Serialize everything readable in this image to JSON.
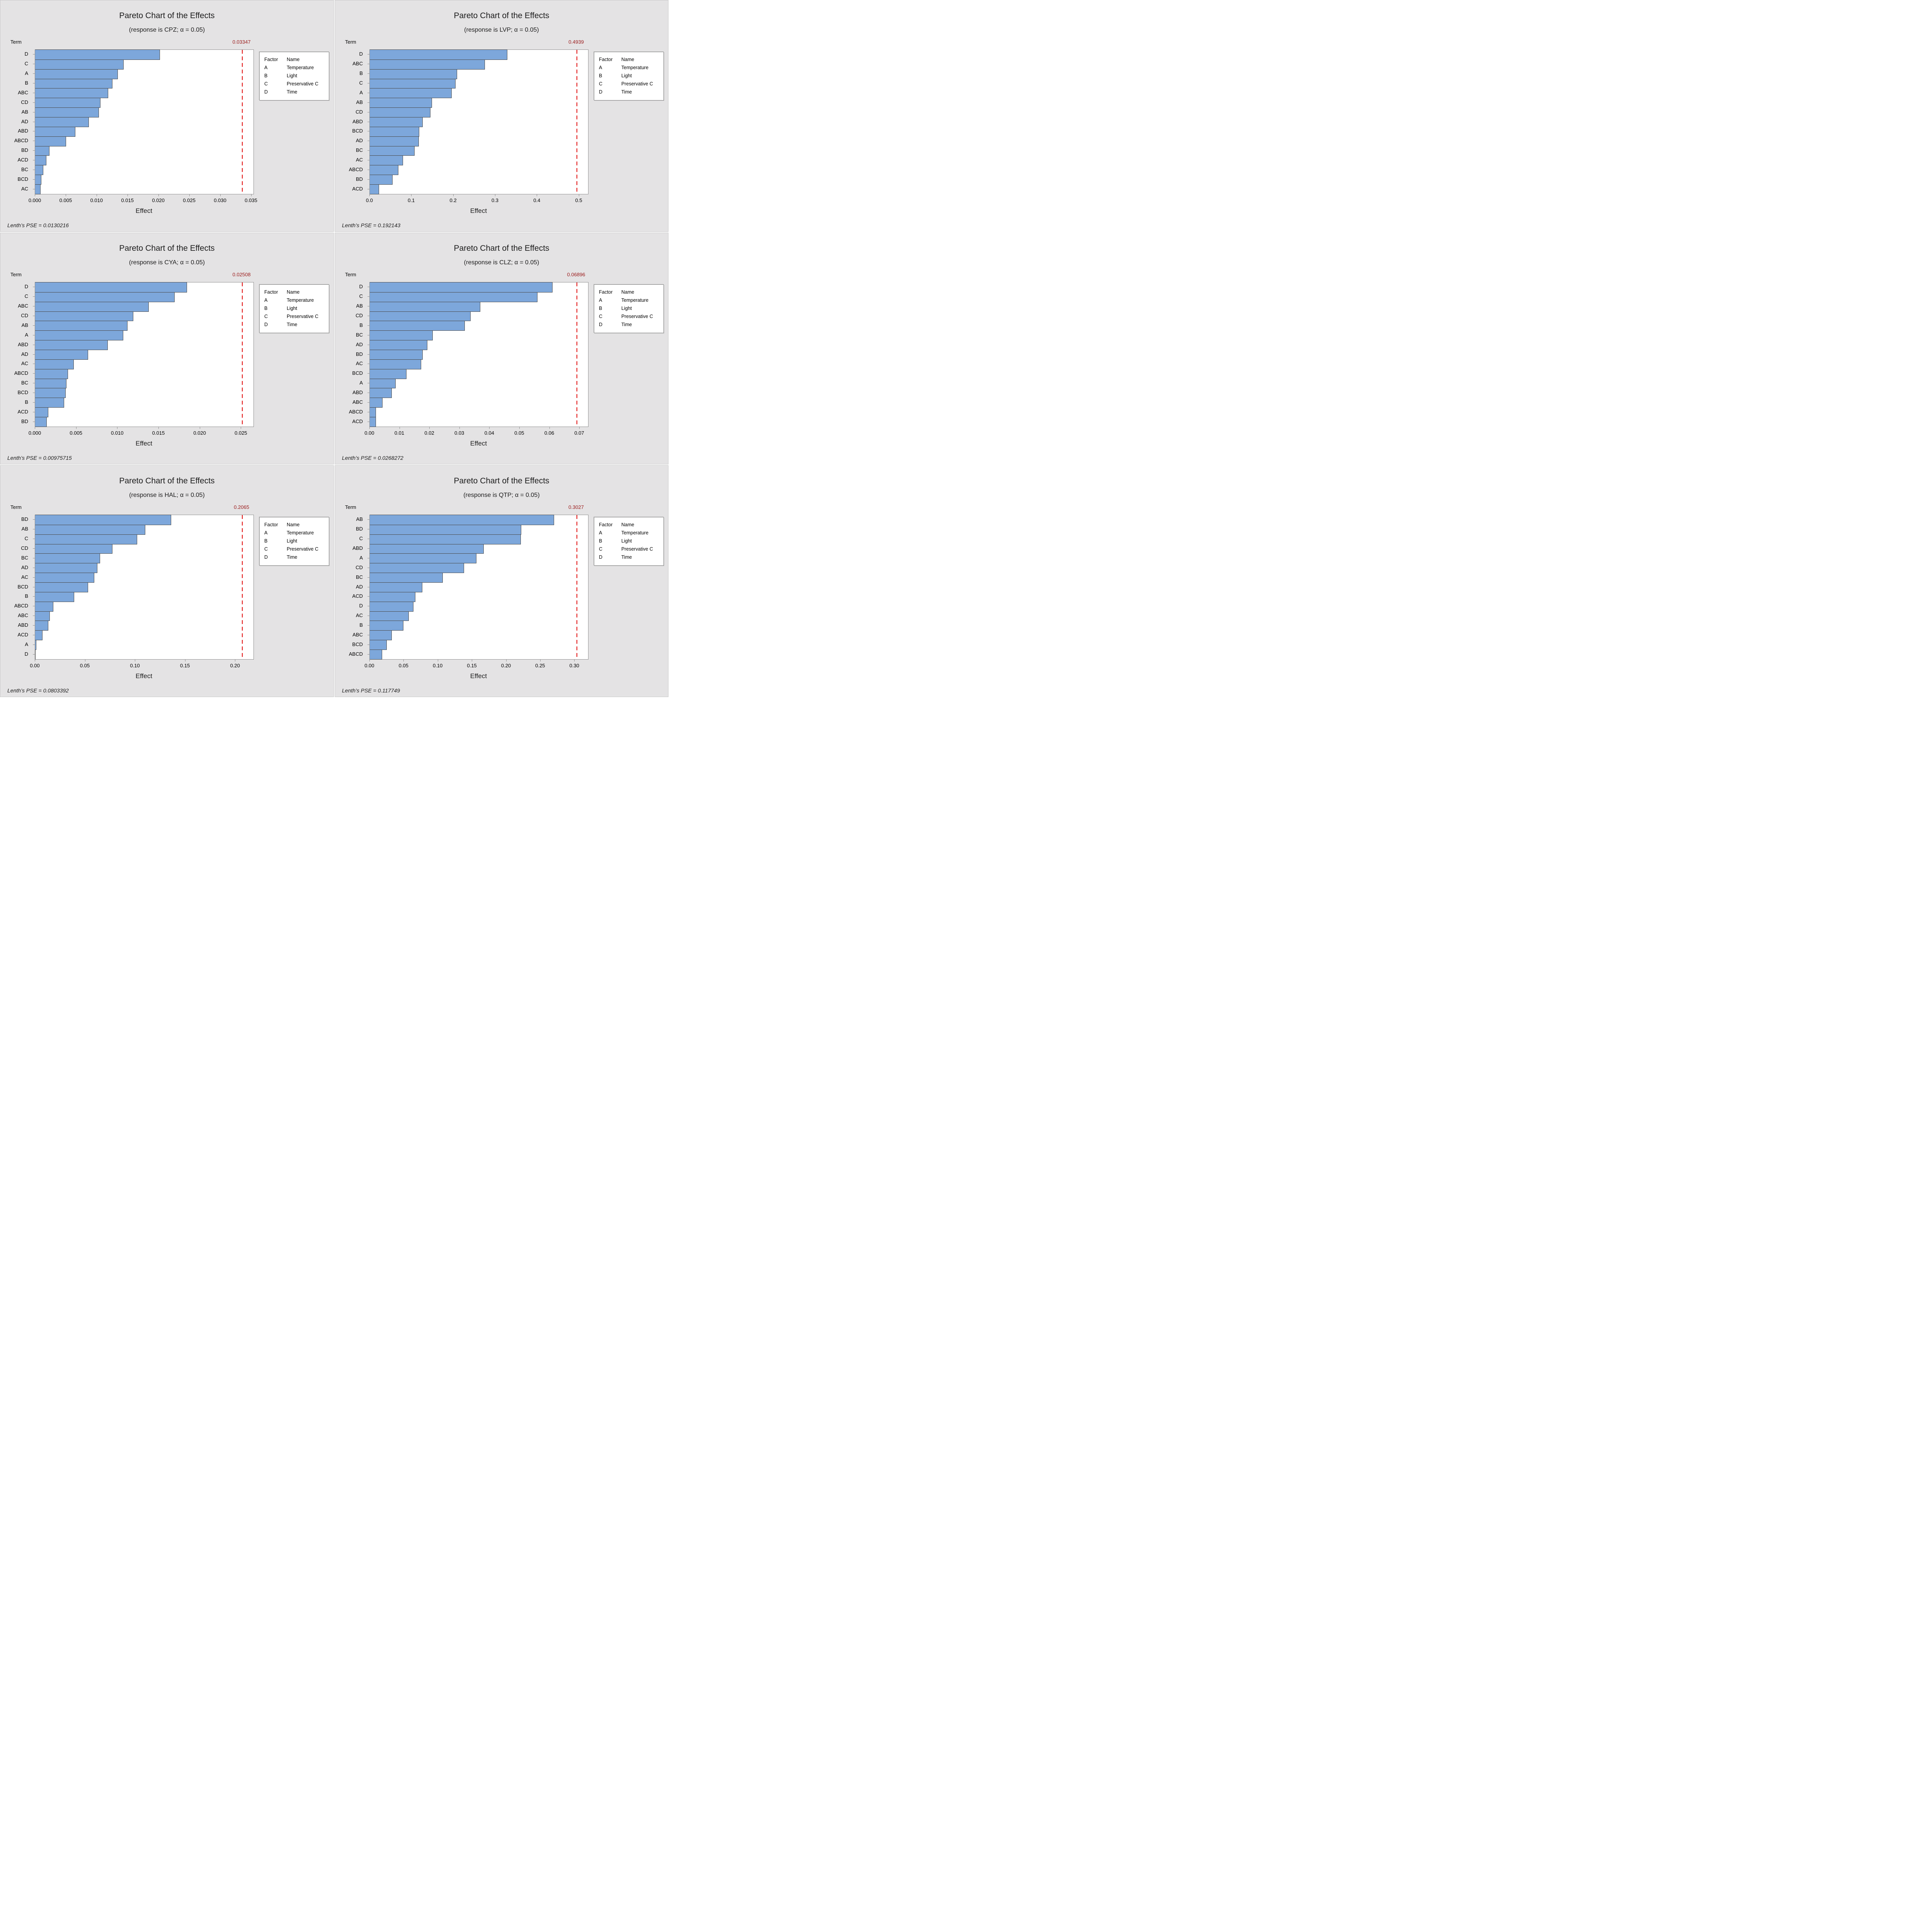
{
  "page": {
    "legend": {
      "header_factor": "Factor",
      "header_name": "Name",
      "rows": [
        {
          "factor": "A",
          "name": "Temperature"
        },
        {
          "factor": "B",
          "name": "Light"
        },
        {
          "factor": "C",
          "name": "Preservative C"
        },
        {
          "factor": "D",
          "name": "Time"
        }
      ]
    },
    "colors": {
      "bar_fill": "#7da7db",
      "bar_border": "#4a4a4a",
      "ref_line_red": "#e00000",
      "ref_label_red": "#9b1b1b",
      "panel_bg": "#e4e3e4",
      "plot_bg": "#ffffff",
      "frame_gray": "#8f8f8f"
    }
  },
  "chart_data": [
    {
      "type": "bar",
      "orientation": "horizontal",
      "title": "Pareto Chart of the Effects",
      "subtitle": "(response is CPZ; α = 0.05)",
      "response": "CPZ",
      "alpha": "0.05",
      "ylabel": "Term",
      "xlabel": "Effect",
      "ref_value": 0.03347,
      "ref_label": "0.03347",
      "lenth_pse_label": "Lenth’s PSE = 0.0130216",
      "axis_max": 0.03534,
      "tick_values": [
        0,
        0.005,
        0.01,
        0.015,
        0.02,
        0.025,
        0.03,
        0.035
      ],
      "tick_labels": [
        "0.000",
        "0.005",
        "0.010",
        "0.015",
        "0.020",
        "0.025",
        "0.030",
        "0.035"
      ],
      "terms": [
        "D",
        "C",
        "A",
        "B",
        "ABC",
        "CD",
        "AB",
        "AD",
        "ABD",
        "ABCD",
        "BD",
        "ACD",
        "BC",
        "BCD",
        "AC"
      ],
      "values": [
        0.0202,
        0.0143,
        0.0134,
        0.0125,
        0.0118,
        0.0106,
        0.0103,
        0.0087,
        0.0065,
        0.005,
        0.0023,
        0.0018,
        0.0013,
        0.001,
        0.0009
      ]
    },
    {
      "type": "bar",
      "orientation": "horizontal",
      "title": "Pareto Chart of the Effects",
      "subtitle": "(response is LVP; α = 0.05)",
      "response": "LVP",
      "alpha": "0.05",
      "ylabel": "Term",
      "xlabel": "Effect",
      "ref_value": 0.4939,
      "ref_label": "0.4939",
      "lenth_pse_label": "Lenth’s PSE = 0.192143",
      "axis_max": 0.5215,
      "tick_values": [
        0,
        0.1,
        0.2,
        0.3,
        0.4,
        0.5
      ],
      "tick_labels": [
        "0.0",
        "0.1",
        "0.2",
        "0.3",
        "0.4",
        "0.5"
      ],
      "terms": [
        "D",
        "ABC",
        "B",
        "C",
        "A",
        "AB",
        "CD",
        "ABD",
        "BCD",
        "AD",
        "BC",
        "AC",
        "ABCD",
        "BD",
        "ACD"
      ],
      "values": [
        0.329,
        0.275,
        0.209,
        0.205,
        0.196,
        0.149,
        0.145,
        0.126,
        0.118,
        0.117,
        0.107,
        0.079,
        0.068,
        0.054,
        0.022
      ]
    },
    {
      "type": "bar",
      "orientation": "horizontal",
      "title": "Pareto Chart of the Effects",
      "subtitle": "(response is CYA; α = 0.05)",
      "response": "CYA",
      "alpha": "0.05",
      "ylabel": "Term",
      "xlabel": "Effect",
      "ref_value": 0.02508,
      "ref_label": "0.02508",
      "lenth_pse_label": "Lenth’s PSE = 0.00975715",
      "axis_max": 0.02648,
      "tick_values": [
        0,
        0.005,
        0.01,
        0.015,
        0.02,
        0.025
      ],
      "tick_labels": [
        "0.000",
        "0.005",
        "0.010",
        "0.015",
        "0.020",
        "0.025"
      ],
      "terms": [
        "D",
        "C",
        "ABC",
        "CD",
        "AB",
        "A",
        "ABD",
        "AD",
        "AC",
        "ABCD",
        "BC",
        "BCD",
        "B",
        "ACD",
        "BD"
      ],
      "values": [
        0.0184,
        0.0169,
        0.0138,
        0.0119,
        0.0112,
        0.0107,
        0.0088,
        0.0064,
        0.0047,
        0.004,
        0.0038,
        0.0037,
        0.0035,
        0.0016,
        0.0014
      ]
    },
    {
      "type": "bar",
      "orientation": "horizontal",
      "title": "Pareto Chart of the Effects",
      "subtitle": "(response is CLZ; α = 0.05)",
      "response": "CLZ",
      "alpha": "0.05",
      "ylabel": "Term",
      "xlabel": "Effect",
      "ref_value": 0.06896,
      "ref_label": "0.06896",
      "lenth_pse_label": "Lenth’s PSE = 0.0268272",
      "axis_max": 0.07282,
      "tick_values": [
        0,
        0.01,
        0.02,
        0.03,
        0.04,
        0.05,
        0.06,
        0.07
      ],
      "tick_labels": [
        "0.00",
        "0.01",
        "0.02",
        "0.03",
        "0.04",
        "0.05",
        "0.06",
        "0.07"
      ],
      "terms": [
        "D",
        "C",
        "AB",
        "CD",
        "B",
        "BC",
        "AD",
        "BD",
        "AC",
        "BCD",
        "A",
        "ABD",
        "ABC",
        "ABCD",
        "ACD"
      ],
      "values": [
        0.061,
        0.056,
        0.0368,
        0.0336,
        0.0317,
        0.021,
        0.0192,
        0.0176,
        0.0172,
        0.0123,
        0.0086,
        0.0074,
        0.0042,
        0.0021,
        0.002
      ]
    },
    {
      "type": "bar",
      "orientation": "horizontal",
      "title": "Pareto Chart of the Effects",
      "subtitle": "(response is HAL; α = 0.05)",
      "response": "HAL",
      "alpha": "0.05",
      "ylabel": "Term",
      "xlabel": "Effect",
      "ref_value": 0.2065,
      "ref_label": "0.2065",
      "lenth_pse_label": "Lenth’s PSE = 0.0803392",
      "axis_max": 0.21805,
      "tick_values": [
        0,
        0.05,
        0.1,
        0.15,
        0.2
      ],
      "tick_labels": [
        "0.00",
        "0.05",
        "0.10",
        "0.15",
        "0.20"
      ],
      "terms": [
        "BD",
        "AB",
        "C",
        "CD",
        "BC",
        "AD",
        "AC",
        "BCD",
        "B",
        "ABCD",
        "ABC",
        "ABD",
        "ACD",
        "A",
        "D"
      ],
      "values": [
        0.136,
        0.11,
        0.102,
        0.077,
        0.065,
        0.062,
        0.059,
        0.053,
        0.039,
        0.018,
        0.0145,
        0.013,
        0.0075,
        0.001,
        0.0005
      ]
    },
    {
      "type": "bar",
      "orientation": "horizontal",
      "title": "Pareto Chart of the Effects",
      "subtitle": "(response is QTP; α = 0.05)",
      "response": "QTP",
      "alpha": "0.05",
      "ylabel": "Term",
      "xlabel": "Effect",
      "ref_value": 0.3027,
      "ref_label": "0.3027",
      "lenth_pse_label": "Lenth’s PSE = 0.117749",
      "axis_max": 0.31964,
      "tick_values": [
        0,
        0.05,
        0.1,
        0.15,
        0.2,
        0.25,
        0.3
      ],
      "tick_labels": [
        "0.00",
        "0.05",
        "0.10",
        "0.15",
        "0.20",
        "0.25",
        "0.30"
      ],
      "terms": [
        "AB",
        "BD",
        "C",
        "ABD",
        "A",
        "CD",
        "BC",
        "AD",
        "ACD",
        "D",
        "AC",
        "B",
        "ABC",
        "BCD",
        "ABCD"
      ],
      "values": [
        0.27,
        0.222,
        0.221,
        0.167,
        0.156,
        0.138,
        0.107,
        0.077,
        0.067,
        0.064,
        0.057,
        0.049,
        0.032,
        0.025,
        0.018
      ]
    }
  ]
}
